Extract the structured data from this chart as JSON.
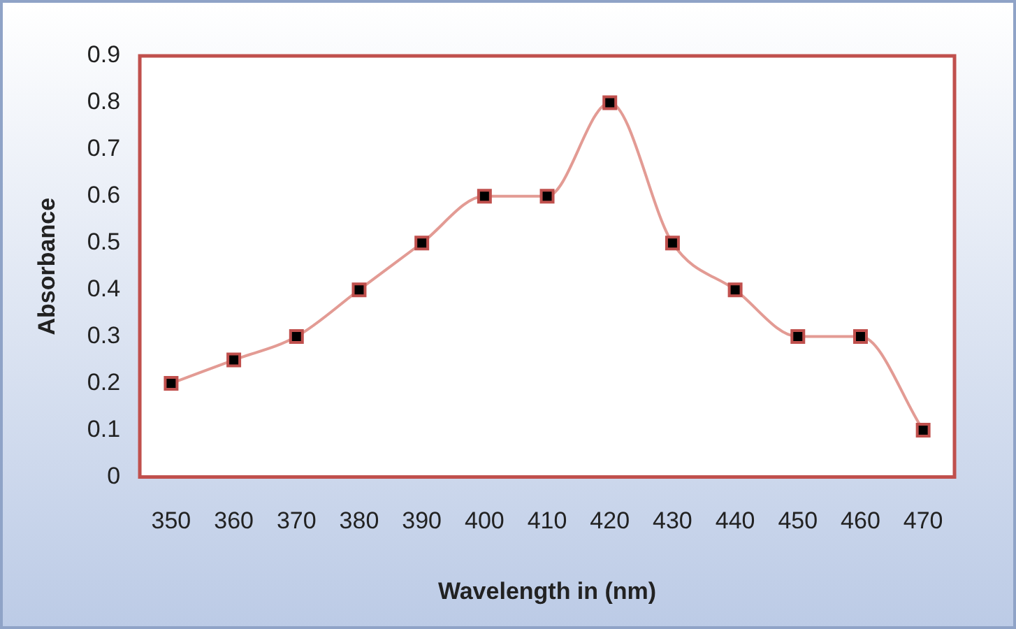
{
  "chart_data": {
    "type": "line",
    "xlabel": "Wavelength in (nm)",
    "ylabel": "Absorbance",
    "categories": [
      "350",
      "360",
      "370",
      "380",
      "390",
      "400",
      "410",
      "420",
      "430",
      "440",
      "450",
      "460",
      "470"
    ],
    "series": [
      {
        "color": "#e39b94",
        "values": [
          0.2,
          0.25,
          0.3,
          0.4,
          0.5,
          0.6,
          0.6,
          0.8,
          0.5,
          0.4,
          0.3,
          0.3,
          0.1
        ]
      }
    ],
    "ylim": [
      0,
      0.9
    ],
    "yticks": [
      0,
      0.1,
      0.2,
      0.3,
      0.4,
      0.5,
      0.6,
      0.7,
      0.8,
      0.9
    ],
    "grid": false,
    "legend": false,
    "marker": "square",
    "line_style": "solid"
  }
}
